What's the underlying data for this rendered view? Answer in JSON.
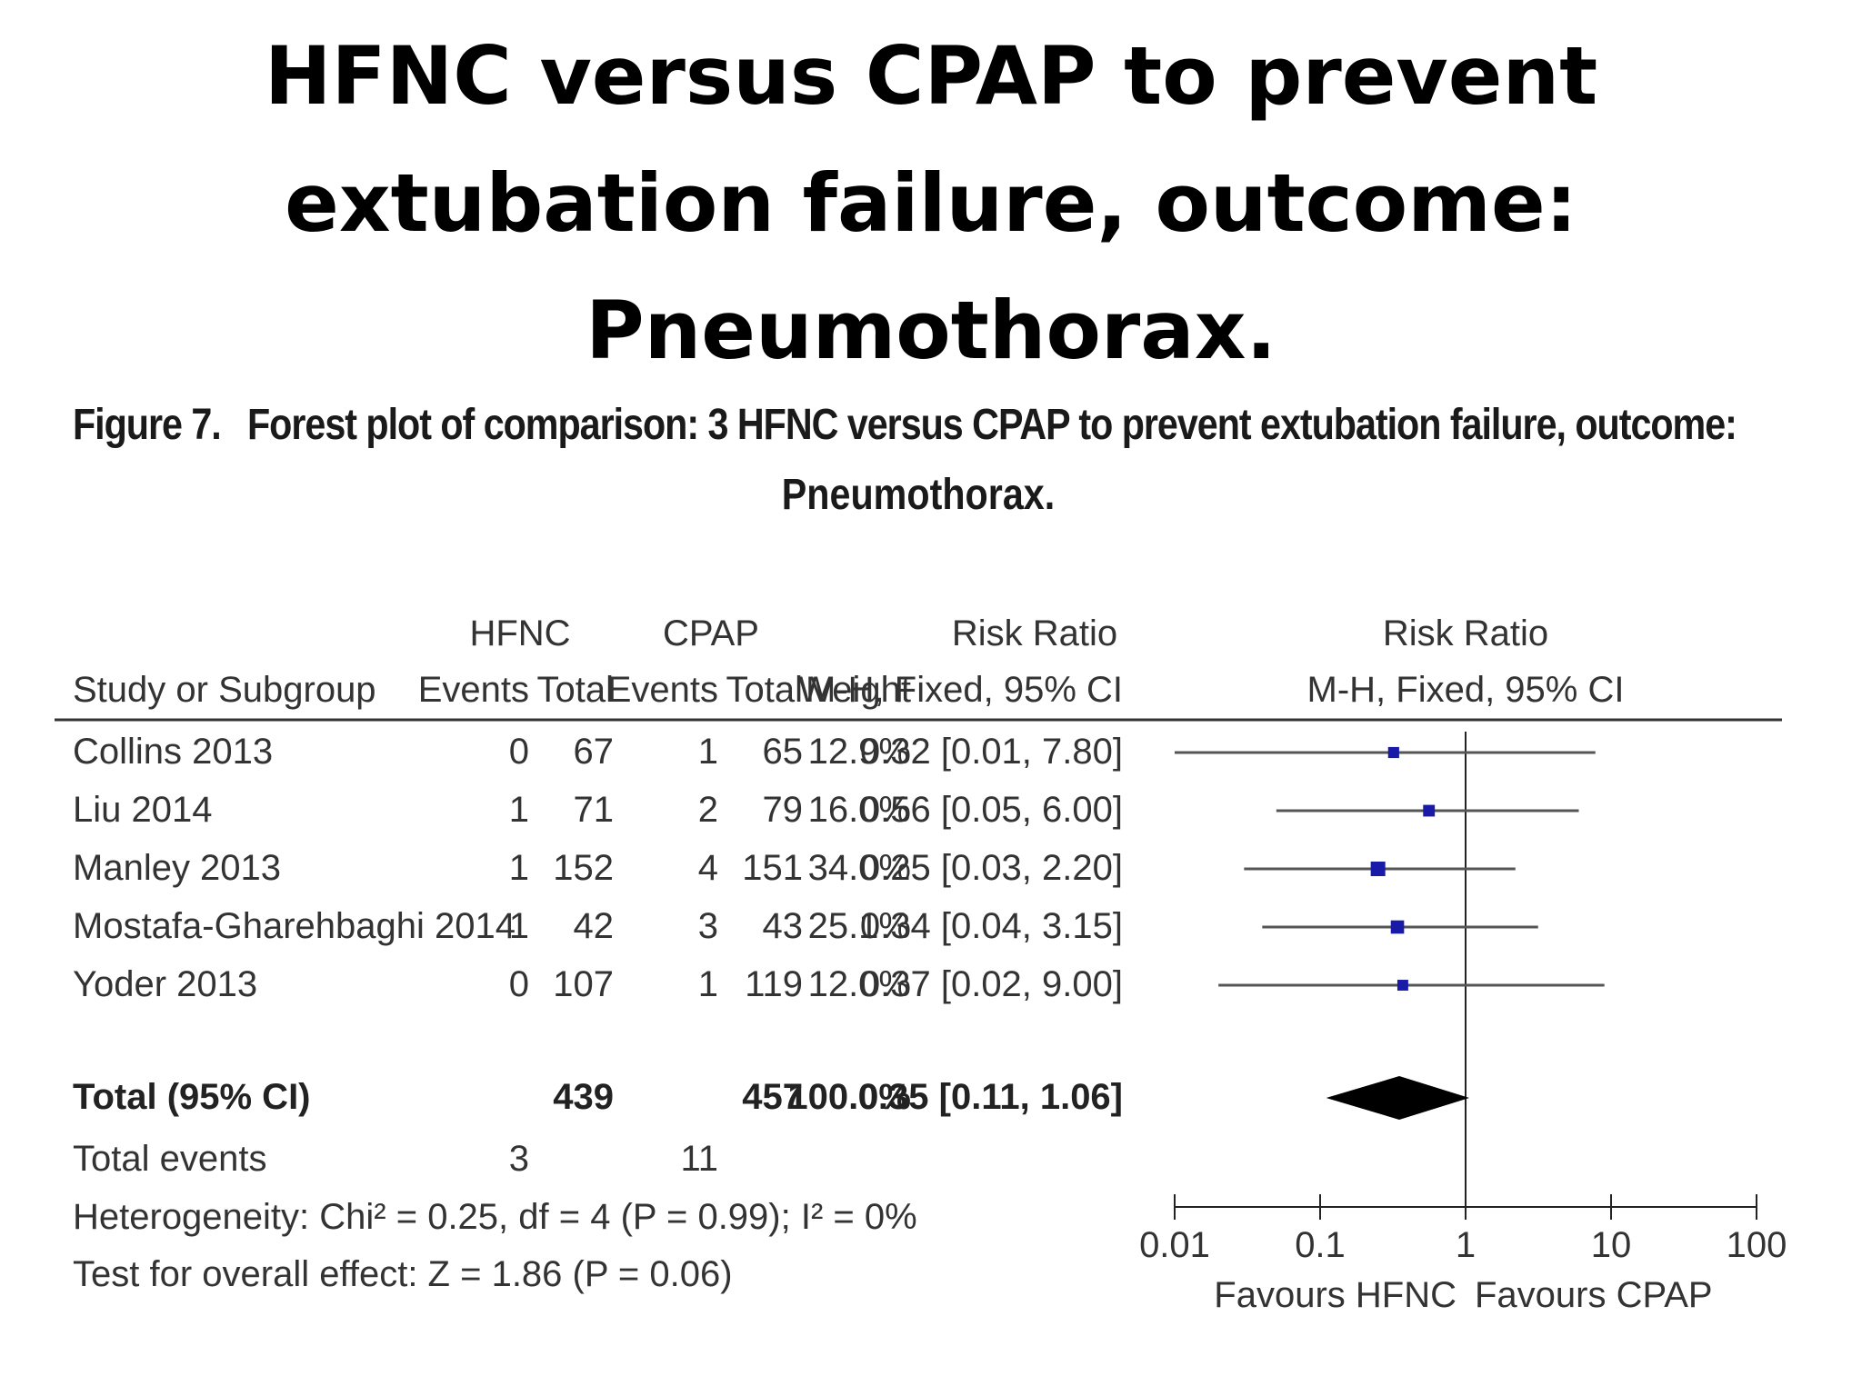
{
  "slide": {
    "title_lines": [
      "HFNC versus CPAP to prevent",
      "extubation failure, outcome:",
      "Pneumothorax."
    ]
  },
  "figure": {
    "label": "Figure 7.",
    "caption_line1": "Forest plot of comparison: 3 HFNC versus CPAP to prevent extubation failure, outcome:",
    "caption_line2": "Pneumothorax."
  },
  "table": {
    "group_headers": {
      "hfnc": "HFNC",
      "cpap": "CPAP",
      "rr_num": "Risk Ratio",
      "rr_plot": "Risk Ratio"
    },
    "column_headers": {
      "study": "Study or Subgroup",
      "events1": "Events",
      "total1": "Total",
      "events2": "Events",
      "total2": "Total",
      "weight": "Weight",
      "rr_num": "M-H, Fixed, 95% CI",
      "rr_plot": "M-H, Fixed, 95% CI"
    },
    "rows": [
      {
        "study": "Collins 2013",
        "events1": "0",
        "total1": "67",
        "events2": "1",
        "total2": "65",
        "weight": "12.9%",
        "rr": "0.32 [0.01, 7.80]"
      },
      {
        "study": "Liu 2014",
        "events1": "1",
        "total1": "71",
        "events2": "2",
        "total2": "79",
        "weight": "16.0%",
        "rr": "0.56 [0.05, 6.00]"
      },
      {
        "study": "Manley 2013",
        "events1": "1",
        "total1": "152",
        "events2": "4",
        "total2": "151",
        "weight": "34.0%",
        "rr": "0.25 [0.03, 2.20]"
      },
      {
        "study": "Mostafa-Gharehbaghi 2014",
        "events1": "1",
        "total1": "42",
        "events2": "3",
        "total2": "43",
        "weight": "25.1%",
        "rr": "0.34 [0.04, 3.15]"
      },
      {
        "study": "Yoder 2013",
        "events1": "0",
        "total1": "107",
        "events2": "1",
        "total2": "119",
        "weight": "12.0%",
        "rr": "0.37 [0.02, 9.00]"
      }
    ],
    "total_row": {
      "label": "Total (95% CI)",
      "total1": "439",
      "total2": "457",
      "weight": "100.0%",
      "rr": "0.35 [0.11, 1.06]"
    },
    "events_row": {
      "label": "Total events",
      "events1": "3",
      "events2": "11"
    },
    "heterogeneity": "Heterogeneity: Chi² = 0.25, df = 4 (P = 0.99); I² = 0%",
    "overall_effect": "Test for overall effect: Z = 1.86 (P = 0.06)"
  },
  "chart_data": {
    "type": "scatter",
    "subtype": "forest",
    "x_scale": "log",
    "xlim": [
      0.01,
      100
    ],
    "x_ticks": [
      "0.01",
      "0.1",
      "1",
      "10",
      "100"
    ],
    "favours_left": "Favours HFNC",
    "favours_right": "Favours CPAP",
    "reference_line": 1,
    "studies": [
      {
        "name": "Collins 2013",
        "rr": 0.32,
        "lo": 0.01,
        "hi": 7.8,
        "weight": 12.9
      },
      {
        "name": "Liu 2014",
        "rr": 0.56,
        "lo": 0.05,
        "hi": 6.0,
        "weight": 16.0
      },
      {
        "name": "Manley 2013",
        "rr": 0.25,
        "lo": 0.03,
        "hi": 2.2,
        "weight": 34.0
      },
      {
        "name": "Mostafa-Gharehbaghi 2014",
        "rr": 0.34,
        "lo": 0.04,
        "hi": 3.15,
        "weight": 25.1
      },
      {
        "name": "Yoder 2013",
        "rr": 0.37,
        "lo": 0.02,
        "hi": 9.0,
        "weight": 12.0
      }
    ],
    "pooled": {
      "rr": 0.35,
      "lo": 0.11,
      "hi": 1.06
    },
    "colors": {
      "marker": "#1a1aa8",
      "ci_line": "#555555",
      "diamond": "#000000"
    }
  }
}
